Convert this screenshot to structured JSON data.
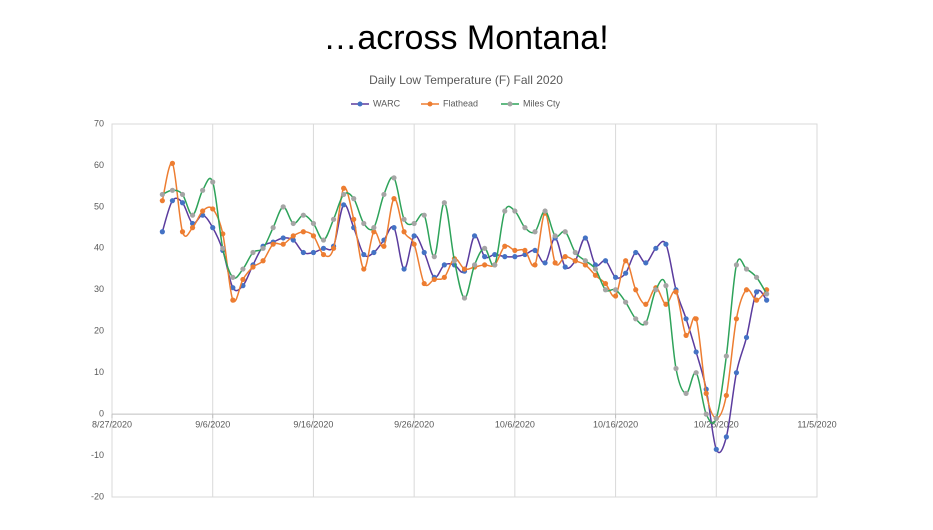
{
  "slide_title": "…across Montana!",
  "chart_data": {
    "type": "line",
    "title": "Daily Low Temperature (F) Fall 2020",
    "x": [
      "9/1/2020",
      "9/2/2020",
      "9/3/2020",
      "9/4/2020",
      "9/5/2020",
      "9/6/2020",
      "9/7/2020",
      "9/8/2020",
      "9/9/2020",
      "9/10/2020",
      "9/11/2020",
      "9/12/2020",
      "9/13/2020",
      "9/14/2020",
      "9/15/2020",
      "9/16/2020",
      "9/17/2020",
      "9/18/2020",
      "9/19/2020",
      "9/20/2020",
      "9/21/2020",
      "9/22/2020",
      "9/23/2020",
      "9/24/2020",
      "9/25/2020",
      "9/26/2020",
      "9/27/2020",
      "9/28/2020",
      "9/29/2020",
      "9/30/2020",
      "10/1/2020",
      "10/2/2020",
      "10/3/2020",
      "10/4/2020",
      "10/5/2020",
      "10/6/2020",
      "10/7/2020",
      "10/8/2020",
      "10/9/2020",
      "10/10/2020",
      "10/11/2020",
      "10/12/2020",
      "10/13/2020",
      "10/14/2020",
      "10/15/2020",
      "10/16/2020",
      "10/17/2020",
      "10/18/2020",
      "10/19/2020",
      "10/20/2020",
      "10/21/2020",
      "10/22/2020",
      "10/23/2020",
      "10/24/2020",
      "10/25/2020",
      "10/26/2020",
      "10/27/2020",
      "10/28/2020",
      "10/29/2020",
      "10/30/2020",
      "10/31/2020"
    ],
    "series": [
      {
        "name": "WARC",
        "color": "#5b3c9e",
        "marker_color": "#4472c4",
        "values": [
          44,
          51.5,
          51,
          46,
          48,
          45,
          39.5,
          30.5,
          31,
          36,
          40.5,
          41.5,
          42.5,
          42,
          39,
          39,
          40,
          40.5,
          50.5,
          45,
          38.5,
          39,
          42,
          45,
          35,
          43,
          39,
          33,
          36,
          36,
          34.5,
          43,
          38,
          38.5,
          38,
          38,
          38.5,
          39.5,
          36.5,
          42.5,
          35.5,
          37,
          42.5,
          36,
          37,
          33,
          34,
          39,
          36.5,
          40,
          41,
          30,
          23,
          15,
          6,
          -8.5,
          -5.5,
          10,
          18.5,
          29.5,
          27.5
        ]
      },
      {
        "name": "Flathead",
        "color": "#ed7d31",
        "marker_color": "#ed7d31",
        "values": [
          51.5,
          60.5,
          44,
          45,
          49,
          49.5,
          43.5,
          27.5,
          32.5,
          35.5,
          37,
          41,
          41,
          43,
          44,
          43,
          38.5,
          40,
          54.5,
          47,
          35,
          44,
          40.5,
          52,
          44,
          41,
          31.5,
          32.5,
          33,
          37.5,
          35,
          35.5,
          36,
          36,
          40.5,
          39.5,
          39.5,
          36,
          48.5,
          36.5,
          38,
          37,
          36,
          33.5,
          31.5,
          28.5,
          37,
          30,
          26.5,
          30.5,
          26.5,
          29.5,
          19,
          23,
          5,
          -1,
          4.5,
          23,
          30,
          27.5,
          30
        ]
      },
      {
        "name": "Miles Cty",
        "color": "#2ea35a",
        "marker_color": "#a5a5a5",
        "values": [
          53,
          54,
          53,
          48,
          54,
          56,
          40,
          33,
          35,
          39,
          40,
          45,
          50,
          46,
          48,
          46,
          42,
          47,
          53,
          52,
          46,
          45,
          53,
          57,
          47,
          46,
          48,
          38,
          51,
          37,
          28,
          36,
          40,
          36,
          49,
          49,
          45,
          44,
          49,
          43,
          44,
          39,
          37,
          35,
          30,
          30,
          27,
          23,
          22,
          30,
          31,
          11,
          5,
          10,
          0,
          -1,
          14,
          36,
          35,
          33,
          29
        ]
      }
    ],
    "xlim": [
      "8/27/2020",
      "11/5/2020"
    ],
    "xticks": [
      "8/27/2020",
      "9/6/2020",
      "9/16/2020",
      "9/26/2020",
      "10/6/2020",
      "10/16/2020",
      "10/26/2020",
      "11/5/2020"
    ],
    "ylim": [
      -20,
      70
    ],
    "yticks": [
      -20,
      -10,
      0,
      10,
      20,
      30,
      40,
      50,
      60,
      70
    ],
    "grid": "vertical",
    "smooth": true,
    "legend": "top"
  }
}
